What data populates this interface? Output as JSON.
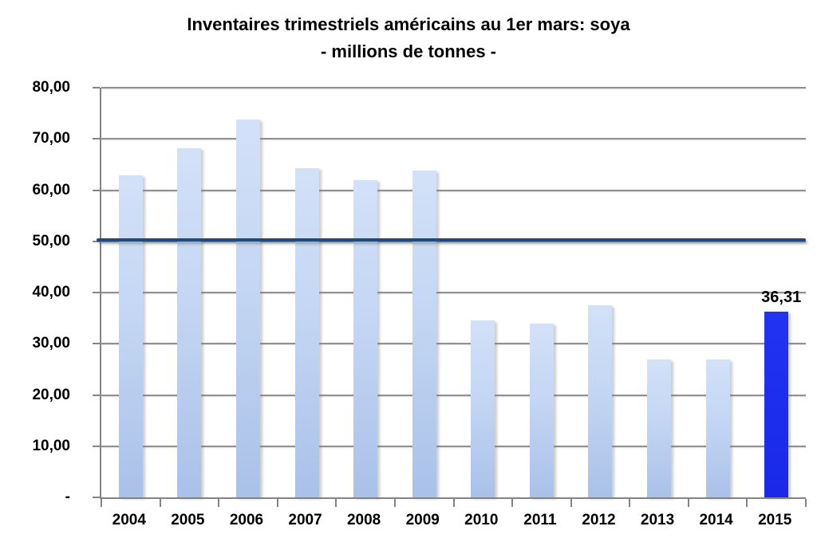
{
  "title": {
    "line1": "Inventaires trimestriels américains au 1er mars: soya",
    "line2": "- millions de tonnes -"
  },
  "chart_data": {
    "type": "bar",
    "title": "Inventaires trimestriels américains au 1er mars: soya - millions de tonnes -",
    "categories": [
      "2004",
      "2005",
      "2006",
      "2007",
      "2008",
      "2009",
      "2010",
      "2011",
      "2012",
      "2013",
      "2014",
      "2015"
    ],
    "values": [
      62.9,
      68.2,
      73.8,
      64.3,
      62.0,
      63.8,
      34.5,
      34.0,
      37.5,
      27.0,
      26.9,
      36.31
    ],
    "highlight_index": 11,
    "highlight_label": "36,31",
    "reference_line": {
      "value": 50.3,
      "color": "#1f4a7c"
    },
    "xlabel": "",
    "ylabel": "",
    "ylim": [
      0,
      80
    ],
    "ytick_step": 10,
    "ytick_labels": [
      "80,00",
      "70,00",
      "60,00",
      "50,00",
      "40,00",
      "30,00",
      "20,00",
      "10,00",
      "-"
    ],
    "grid": true,
    "legend_position": "none",
    "colors": {
      "bar_top": "#d3e1f8",
      "bar_bottom": "#aac1e8",
      "highlight_bar": "#1b28e8",
      "gridline": "#919191",
      "axis": "#848484",
      "text": "#000000"
    }
  }
}
